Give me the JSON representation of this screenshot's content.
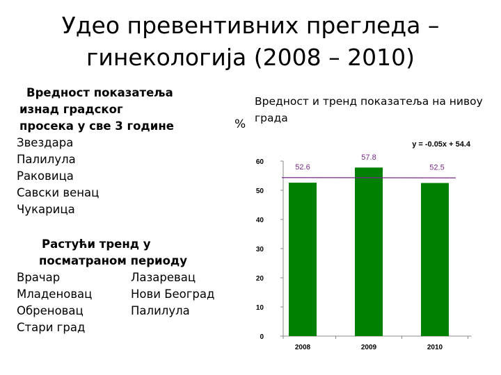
{
  "slide": {
    "title_line1": "Удео превентивних прегледа –",
    "title_line2": "гинекологија (2008 – 2010)",
    "above_avg": {
      "heading": [
        "Вредност показатеља",
        "изнад градског",
        "просека у све 3 године"
      ],
      "items": [
        "Звездара",
        "Палилула",
        "Раковица",
        "Савски венац",
        "Чукарица"
      ]
    },
    "rising": {
      "heading": [
        "Растући тренд у",
        "посматраном периоду"
      ],
      "rows": [
        [
          "Врачар",
          "Лазаревац"
        ],
        [
          "Младеновац",
          "Нови Београд"
        ],
        [
          "Обреновац",
          "Палилула"
        ],
        [
          "Стари град",
          ""
        ]
      ]
    }
  },
  "chart_data": {
    "type": "bar",
    "title": "Вредност и тренд показатеља на нивоу града",
    "ylabel": "%",
    "categories": [
      "2008",
      "2009",
      "2010"
    ],
    "values": [
      52.6,
      57.8,
      52.5
    ],
    "data_labels": [
      "52.6",
      "57.8",
      "52.5"
    ],
    "ylim": [
      0,
      60
    ],
    "yticks": [
      0,
      10,
      20,
      30,
      40,
      50,
      60
    ],
    "trendline": {
      "equation": "y = -0.05x + 54.4",
      "slope": -0.05,
      "intercept": 54.4
    },
    "bar_color": "#008000",
    "label_color": "#7a2a8a",
    "trend_color": "#7a2a8a",
    "grid": false,
    "legend": "none"
  }
}
